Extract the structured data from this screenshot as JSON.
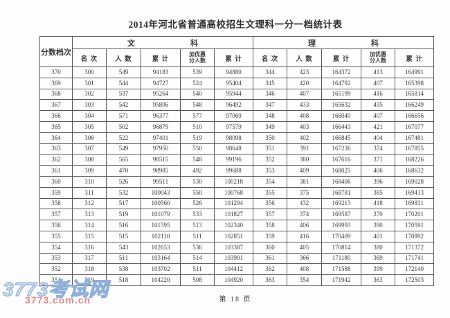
{
  "page": {
    "title": "2014年河北省普通高校招生文理科一分一档统计表",
    "footer": "第 18 页"
  },
  "watermark": {
    "line1": "3773考试网",
    "line2": "3773.com.cn",
    "blue": "#8fb0d8",
    "red": "#dd8a8a"
  },
  "table": {
    "corner_header": "分数档次",
    "group_liberal_arts": {
      "left": "文",
      "right": "科"
    },
    "group_science": {
      "left": "理",
      "right": "科"
    },
    "sub_headers": [
      "名 次",
      "人 数",
      "累 计",
      "加优惠\n分人数",
      "累 计"
    ],
    "rows": [
      [
        370,
        300,
        549,
        94183,
        539,
        94880,
        344,
        423,
        164372,
        413,
        164991
      ],
      [
        369,
        301,
        544,
        94727,
        524,
        95404,
        345,
        420,
        164792,
        407,
        165398
      ],
      [
        368,
        302,
        537,
        95264,
        540,
        95944,
        346,
        407,
        165199,
        416,
        165814
      ],
      [
        367,
        303,
        542,
        95806,
        548,
        96492,
        347,
        433,
        165632,
        435,
        166249
      ],
      [
        366,
        304,
        571,
        96377,
        577,
        97069,
        348,
        408,
        166040,
        407,
        166656
      ],
      [
        365,
        305,
        502,
        96879,
        510,
        97579,
        349,
        403,
        166443,
        421,
        167077
      ],
      [
        364,
        306,
        522,
        97401,
        519,
        98098,
        350,
        402,
        166845,
        404,
        167481
      ],
      [
        363,
        307,
        549,
        97950,
        550,
        98648,
        351,
        391,
        167236,
        374,
        167855
      ],
      [
        362,
        308,
        565,
        98515,
        548,
        99196,
        352,
        380,
        167616,
        371,
        168226
      ],
      [
        361,
        309,
        470,
        98985,
        492,
        99688,
        353,
        409,
        168025,
        406,
        168632
      ],
      [
        360,
        310,
        526,
        99511,
        530,
        100218,
        354,
        381,
        168406,
        396,
        169028
      ],
      [
        359,
        311,
        532,
        100043,
        550,
        100768,
        355,
        375,
        168781,
        385,
        169413
      ],
      [
        358,
        312,
        517,
        100560,
        526,
        101294,
        356,
        432,
        169213,
        418,
        169831
      ],
      [
        357,
        313,
        519,
        101079,
        533,
        101827,
        357,
        374,
        169587,
        370,
        170201
      ],
      [
        356,
        314,
        516,
        101595,
        513,
        102340,
        358,
        406,
        169993,
        390,
        170591
      ],
      [
        355,
        315,
        515,
        102110,
        511,
        102851,
        359,
        416,
        170409,
        401,
        170992
      ],
      [
        354,
        316,
        543,
        102653,
        536,
        103387,
        360,
        405,
        170814,
        380,
        171372
      ],
      [
        353,
        317,
        511,
        103164,
        514,
        103901,
        361,
        366,
        171180,
        369,
        171741
      ],
      [
        352,
        318,
        538,
        103702,
        511,
        104412,
        362,
        408,
        171588,
        399,
        172140
      ],
      [
        351,
        319,
        518,
        104220,
        508,
        104920,
        363,
        354,
        171942,
        363,
        172503
      ]
    ]
  }
}
